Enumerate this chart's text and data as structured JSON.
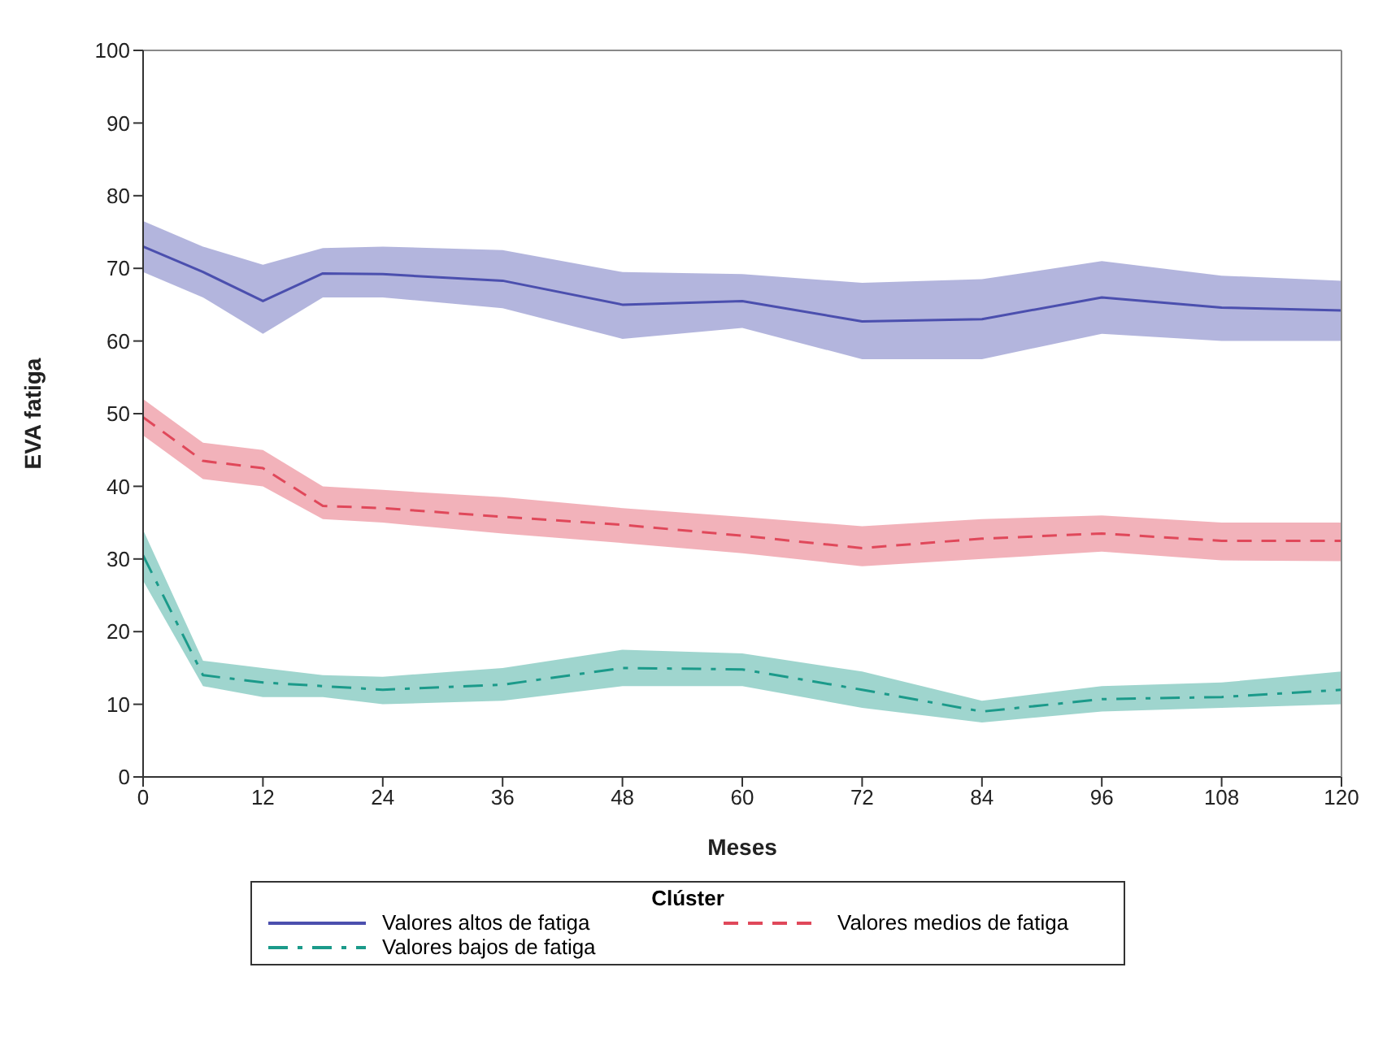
{
  "chart_data": {
    "type": "line",
    "xlabel": "Meses",
    "ylabel": "EVA fatiga",
    "legend_title": "Clúster",
    "legend": "bottom",
    "marker": "none",
    "x": [
      0,
      6,
      12,
      18,
      24,
      36,
      48,
      60,
      72,
      84,
      96,
      108,
      120
    ],
    "xlim": [
      0,
      120
    ],
    "xticks": [
      0,
      12,
      24,
      36,
      48,
      60,
      72,
      84,
      96,
      108,
      120
    ],
    "ylim": [
      0,
      100
    ],
    "yticks": [
      0,
      10,
      20,
      30,
      40,
      50,
      60,
      70,
      80,
      90,
      100
    ],
    "series": [
      {
        "name": "Valores altos de fatiga",
        "color": "#4b4fae",
        "line_style": "solid",
        "values": [
          73,
          69.5,
          65.5,
          69.3,
          69.2,
          68.3,
          65,
          65.5,
          62.7,
          63,
          66,
          64.6,
          64.2
        ],
        "upper": [
          76.5,
          73,
          70.5,
          72.8,
          73,
          72.5,
          69.5,
          69.2,
          68,
          68.5,
          71,
          69,
          68.3
        ],
        "lower": [
          69.5,
          66,
          61,
          66,
          66,
          64.5,
          60.3,
          61.8,
          57.5,
          57.5,
          61,
          60,
          60
        ]
      },
      {
        "name": "Valores medios de fatiga",
        "color": "#e0485a",
        "line_style": "dashed",
        "values": [
          49.5,
          43.5,
          42.5,
          37.3,
          37,
          35.8,
          34.7,
          33.2,
          31.5,
          32.8,
          33.5,
          32.5,
          32.5
        ],
        "upper": [
          52,
          46,
          45,
          40,
          39.5,
          38.5,
          37,
          35.8,
          34.5,
          35.5,
          36,
          35,
          35
        ],
        "lower": [
          47,
          41,
          40,
          35.5,
          35,
          33.5,
          32.2,
          30.8,
          29,
          30,
          31,
          29.8,
          29.7
        ]
      },
      {
        "name": "Valores bajos de fatiga",
        "color": "#1b9a8a",
        "line_style": "dashdot",
        "values": [
          30.5,
          14,
          13,
          12.5,
          12,
          12.7,
          15,
          14.8,
          12,
          9,
          10.7,
          11,
          12
        ],
        "upper": [
          34,
          16,
          15,
          14,
          13.8,
          15,
          17.5,
          17,
          14.5,
          10.5,
          12.5,
          13,
          14.5
        ],
        "lower": [
          27,
          12.5,
          11,
          11,
          10,
          10.5,
          12.5,
          12.5,
          9.5,
          7.5,
          9,
          9.5,
          10
        ]
      }
    ]
  }
}
